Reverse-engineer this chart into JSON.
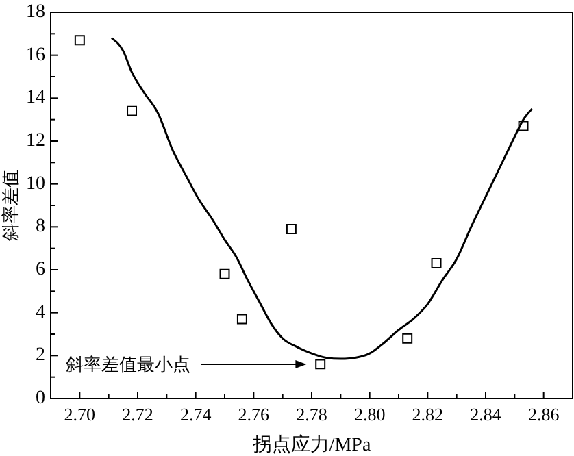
{
  "chart_data": {
    "type": "scatter",
    "xlabel": "拐点应力/MPa",
    "ylabel": "斜率差值",
    "xlim": [
      2.69,
      2.87
    ],
    "xticks": [
      {
        "value": 2.7,
        "label": "2.70"
      },
      {
        "value": 2.71,
        "label": null
      },
      2.72,
      {
        "value": 2.73,
        "label": null
      },
      2.74,
      {
        "value": 2.75,
        "label": null
      },
      2.76,
      {
        "value": 2.77,
        "label": null
      },
      2.78,
      {
        "value": 2.79,
        "label": null
      },
      {
        "value": 2.8,
        "label": "2.80"
      },
      {
        "value": 2.81,
        "label": null
      },
      2.82,
      {
        "value": 2.83,
        "label": null
      },
      2.84,
      {
        "value": 2.85,
        "label": null
      },
      2.86
    ],
    "ylim": [
      0,
      18
    ],
    "yticks": [
      0,
      {
        "value": 1,
        "label": null
      },
      2,
      {
        "value": 3,
        "label": null
      },
      4,
      {
        "value": 5,
        "label": null
      },
      6,
      {
        "value": 7,
        "label": null
      },
      8,
      {
        "value": 9,
        "label": null
      },
      10,
      {
        "value": 11,
        "label": null
      },
      12,
      {
        "value": 13,
        "label": null
      },
      14,
      {
        "value": 15,
        "label": null
      },
      16,
      {
        "value": 17,
        "label": null
      },
      18
    ],
    "grid": false,
    "series": [
      {
        "marker": "square",
        "color": "#000000",
        "x": [
          2.7,
          2.718,
          2.75,
          2.756,
          2.773,
          2.783,
          2.813,
          2.823,
          2.853
        ],
        "values": [
          16.7,
          13.4,
          5.8,
          3.7,
          7.9,
          1.6,
          2.8,
          6.3,
          12.7
        ]
      },
      {
        "type": "line",
        "marker": "none",
        "line_style": "solid",
        "color": "#000000",
        "x": [
          2.711,
          2.715,
          2.718,
          2.722,
          2.727,
          2.732,
          2.737,
          2.741,
          2.746,
          2.75,
          2.754,
          2.758,
          2.762,
          2.766,
          2.77,
          2.775,
          2.78,
          2.785,
          2.79,
          2.795,
          2.8,
          2.805,
          2.81,
          2.815,
          2.82,
          2.825,
          2.83,
          2.835,
          2.84,
          2.845,
          2.85,
          2.853,
          2.856
        ],
        "values": [
          16.8,
          16.2,
          15.2,
          14.3,
          13.3,
          11.6,
          10.3,
          9.3,
          8.3,
          7.4,
          6.6,
          5.5,
          4.5,
          3.5,
          2.8,
          2.4,
          2.1,
          1.9,
          1.85,
          1.9,
          2.1,
          2.6,
          3.2,
          3.7,
          4.4,
          5.5,
          6.5,
          8.0,
          9.4,
          10.8,
          12.2,
          13.0,
          13.5
        ]
      }
    ],
    "annotations": [
      "斜率差值最小点"
    ]
  }
}
